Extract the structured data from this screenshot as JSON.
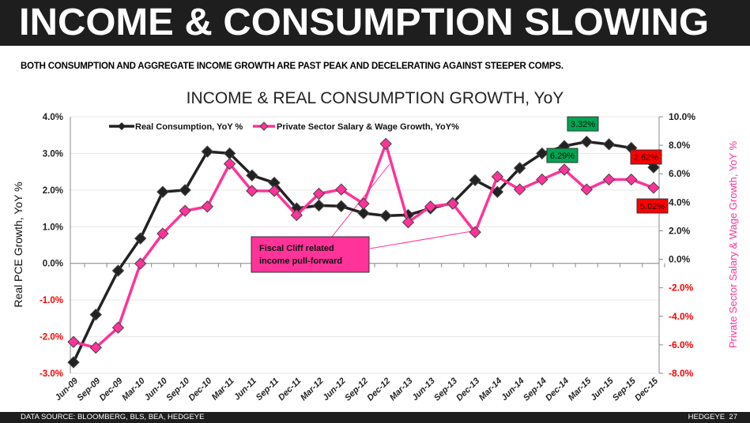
{
  "header": {
    "title": "INCOME & CONSUMPTION SLOWING"
  },
  "subtitle": "BOTH CONSUMPTION AND AGGREGATE INCOME GROWTH ARE PAST PEAK AND DECELERATING AGAINST STEEPER COMPS.",
  "footer": {
    "source": "DATA SOURCE: BLOOMBERG, BLS, BEA, HEDGEYE",
    "brand": "HEDGEYE",
    "page": "27"
  },
  "colors": {
    "consumption": "#222222",
    "wage": "#ff3399",
    "negative_tick": "#ff0000",
    "green_label": "#00a550",
    "red_label": "#ff0000"
  },
  "chart_data": {
    "type": "line",
    "title": "INCOME & REAL CONSUMPTION GROWTH, YoY",
    "ylabel": "Real PCE Growth, YoY %",
    "y2label": "Private Sector Salary & Wage Growth, YoY %",
    "ylim": [
      -3,
      4
    ],
    "y2lim": [
      -8,
      10
    ],
    "yticks": [
      "4.0%",
      "3.0%",
      "2.0%",
      "1.0%",
      "0.0%",
      "-1.0%",
      "-2.0%",
      "-3.0%"
    ],
    "y2ticks": [
      "10.0%",
      "8.0%",
      "6.0%",
      "4.0%",
      "2.0%",
      "0.0%",
      "-2.0%",
      "-4.0%",
      "-6.0%",
      "-8.0%"
    ],
    "grid": true,
    "legend": "top",
    "categories": [
      "Jun-09",
      "Sep-09",
      "Dec-09",
      "Mar-10",
      "Jun-10",
      "Sep-10",
      "Dec-10",
      "Mar-11",
      "Jun-11",
      "Sep-11",
      "Dec-11",
      "Mar-12",
      "Jun-12",
      "Sep-12",
      "Dec-12",
      "Mar-13",
      "Jun-13",
      "Sep-13",
      "Dec-13",
      "Mar-14",
      "Jun-14",
      "Sep-14",
      "Dec-14",
      "Mar-15",
      "Jun-15",
      "Sep-15",
      "Dec-15"
    ],
    "series": [
      {
        "name": "Real Consumption, YoY %",
        "axis": "left",
        "values": [
          -2.7,
          -1.4,
          -0.2,
          0.68,
          1.95,
          2.0,
          3.05,
          3.0,
          2.4,
          2.2,
          1.5,
          1.58,
          1.56,
          1.37,
          1.3,
          1.32,
          1.5,
          1.65,
          2.27,
          1.95,
          2.6,
          3.0,
          3.2,
          3.32,
          3.25,
          3.15,
          2.62
        ]
      },
      {
        "name": "Private Sector Salary & Wage Growth, YoY%",
        "axis": "right",
        "values": [
          -5.8,
          -6.2,
          -4.8,
          -0.3,
          1.8,
          3.4,
          3.7,
          6.7,
          4.8,
          4.8,
          3.1,
          4.6,
          4.9,
          3.9,
          8.1,
          2.6,
          3.7,
          3.9,
          1.9,
          5.8,
          4.9,
          5.6,
          6.29,
          4.9,
          5.6,
          5.6,
          5.02
        ]
      }
    ],
    "annotations": [
      {
        "text": "3.32%",
        "kind": "green"
      },
      {
        "text": "6.29%",
        "kind": "green"
      },
      {
        "text": "2.62%",
        "kind": "red"
      },
      {
        "text": "5.02%",
        "kind": "red"
      },
      {
        "text": "Fiscal Cliff related income pull-forward",
        "kind": "callout"
      }
    ]
  }
}
